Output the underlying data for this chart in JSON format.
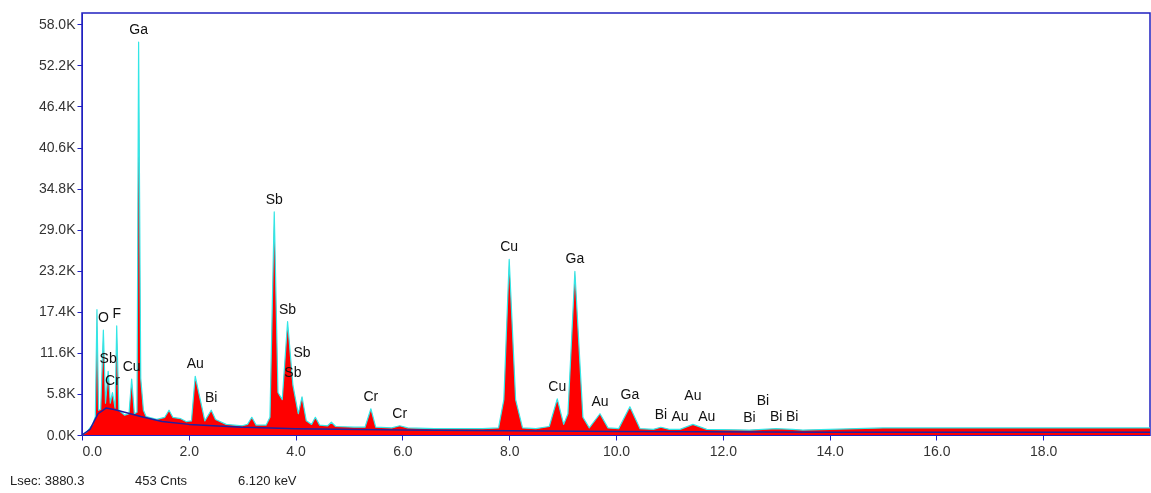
{
  "chart_data": {
    "type": "area",
    "xlim": [
      0,
      20
    ],
    "ylim": [
      0,
      59600
    ],
    "xticks": [
      {
        "value": 0,
        "label": "0.0"
      },
      {
        "value": 2,
        "label": "2.0"
      },
      {
        "value": 4,
        "label": "4.0"
      },
      {
        "value": 6,
        "label": "6.0"
      },
      {
        "value": 8,
        "label": "8.0"
      },
      {
        "value": 10,
        "label": "10.0"
      },
      {
        "value": 12,
        "label": "12.0"
      },
      {
        "value": 14,
        "label": "14.0"
      },
      {
        "value": 16,
        "label": "16.0"
      },
      {
        "value": 18,
        "label": "18.0"
      }
    ],
    "yticks": [
      {
        "value": 0,
        "label": "0.0K"
      },
      {
        "value": 5800,
        "label": "5.8K"
      },
      {
        "value": 11600,
        "label": "11.6K"
      },
      {
        "value": 17400,
        "label": "17.4K"
      },
      {
        "value": 23200,
        "label": "23.2K"
      },
      {
        "value": 29000,
        "label": "29.0K"
      },
      {
        "value": 34800,
        "label": "34.8K"
      },
      {
        "value": 40600,
        "label": "40.6K"
      },
      {
        "value": 46400,
        "label": "46.4K"
      },
      {
        "value": 52200,
        "label": "52.2K"
      },
      {
        "value": 58000,
        "label": "58.0K"
      }
    ],
    "series": [
      {
        "type": "area",
        "color": "#ff0000",
        "x": [
          0,
          0.1,
          0.2,
          0.25,
          0.28,
          0.31,
          0.35,
          0.4,
          0.44,
          0.49,
          0.53,
          0.57,
          0.62,
          0.65,
          0.69,
          0.8,
          0.88,
          0.93,
          0.98,
          1.03,
          1.06,
          1.1,
          1.15,
          1.2,
          1.4,
          1.55,
          1.63,
          1.7,
          1.85,
          1.95,
          2.05,
          2.12,
          2.2,
          2.3,
          2.42,
          2.5,
          2.7,
          3.0,
          3.1,
          3.18,
          3.26,
          3.45,
          3.52,
          3.6,
          3.67,
          3.75,
          3.85,
          3.95,
          4.05,
          4.12,
          4.2,
          4.3,
          4.37,
          4.45,
          4.6,
          4.67,
          4.75,
          5.1,
          5.3,
          5.41,
          5.5,
          5.8,
          5.95,
          6.1,
          6.6,
          7.5,
          7.8,
          7.9,
          8.0,
          8.12,
          8.25,
          8.5,
          8.75,
          8.9,
          9.02,
          9.1,
          9.23,
          9.38,
          9.5,
          9.7,
          9.85,
          10.05,
          10.26,
          10.45,
          10.7,
          10.84,
          11.0,
          11.2,
          11.44,
          11.7,
          12.5,
          12.75,
          13.0,
          13.3,
          13.5,
          15,
          17,
          20
        ],
        "values": [
          0,
          500,
          1500,
          2600,
          17700,
          3500,
          3600,
          14800,
          4500,
          9000,
          4500,
          6000,
          3800,
          15400,
          3500,
          2800,
          3000,
          7900,
          3000,
          3200,
          55500,
          8000,
          3500,
          2600,
          2200,
          2500,
          3500,
          2500,
          2300,
          1900,
          2000,
          8300,
          5500,
          2000,
          3500,
          2200,
          1500,
          1300,
          1500,
          2500,
          1400,
          1400,
          2500,
          31500,
          6000,
          5000,
          16000,
          7000,
          3000,
          5400,
          2000,
          1500,
          2500,
          1400,
          1300,
          1800,
          1200,
          1100,
          1100,
          3700,
          1100,
          1000,
          1300,
          1000,
          900,
          900,
          1000,
          5000,
          24800,
          5000,
          1000,
          900,
          1200,
          5100,
          1500,
          3000,
          23100,
          2500,
          1000,
          3000,
          1000,
          900,
          4000,
          900,
          800,
          1100,
          800,
          800,
          1500,
          800,
          700,
          800,
          900,
          800,
          700,
          1000,
          1000,
          1000
        ]
      },
      {
        "type": "line",
        "color": "#2020a0",
        "x": [
          0,
          0.15,
          0.3,
          0.45,
          0.6,
          0.8,
          1.1,
          1.5,
          2.0,
          3.0,
          4.0,
          6.0,
          8.0,
          10.0,
          14.0,
          20.0
        ],
        "values": [
          0,
          800,
          3000,
          3800,
          3600,
          3200,
          2600,
          1900,
          1500,
          1100,
          900,
          700,
          600,
          500,
          400,
          400
        ]
      }
    ],
    "annotations": [
      {
        "text": "Ga",
        "x": 1.06,
        "y": 55500
      },
      {
        "text": "F",
        "x": 0.65,
        "y": 15400
      },
      {
        "text": "O",
        "x": 0.4,
        "y": 14800
      },
      {
        "text": "Sb",
        "x": 0.49,
        "y": 9000
      },
      {
        "text": "Cr",
        "x": 0.57,
        "y": 6000
      },
      {
        "text": "Cu",
        "x": 0.93,
        "y": 7900
      },
      {
        "text": "Au",
        "x": 2.12,
        "y": 8300
      },
      {
        "text": "Bi",
        "x": 2.42,
        "y": 3500
      },
      {
        "text": "Sb",
        "x": 3.6,
        "y": 31500
      },
      {
        "text": "Sb",
        "x": 3.85,
        "y": 16000
      },
      {
        "text": "Sb",
        "x": 3.95,
        "y": 7000
      },
      {
        "text": "Sb",
        "x": 4.12,
        "y": 5400
      },
      {
        "text": "Cr",
        "x": 5.41,
        "y": 3700
      },
      {
        "text": "Cr",
        "x": 5.95,
        "y": 1300
      },
      {
        "text": "Cu",
        "x": 8.0,
        "y": 24800
      },
      {
        "text": "Ga",
        "x": 9.23,
        "y": 23100
      },
      {
        "text": "Cu",
        "x": 8.9,
        "y": 5100
      },
      {
        "text": "Au",
        "x": 9.7,
        "y": 3000
      },
      {
        "text": "Ga",
        "x": 10.26,
        "y": 4000
      },
      {
        "text": "Bi",
        "x": 10.84,
        "y": 1100
      },
      {
        "text": "Au",
        "x": 11.2,
        "y": 800
      },
      {
        "text": "Au",
        "x": 11.7,
        "y": 800
      },
      {
        "text": "Au",
        "x": 11.44,
        "y": 1500
      },
      {
        "text": "Bi",
        "x": 12.5,
        "y": 700
      },
      {
        "text": "Bi",
        "x": 12.75,
        "y": 800
      },
      {
        "text": "Bi",
        "x": 13.0,
        "y": 900
      },
      {
        "text": "Bi",
        "x": 13.3,
        "y": 800
      },
      "Lsec: 3880.3",
      "453 Cnts",
      "6.120 keV"
    ]
  }
}
